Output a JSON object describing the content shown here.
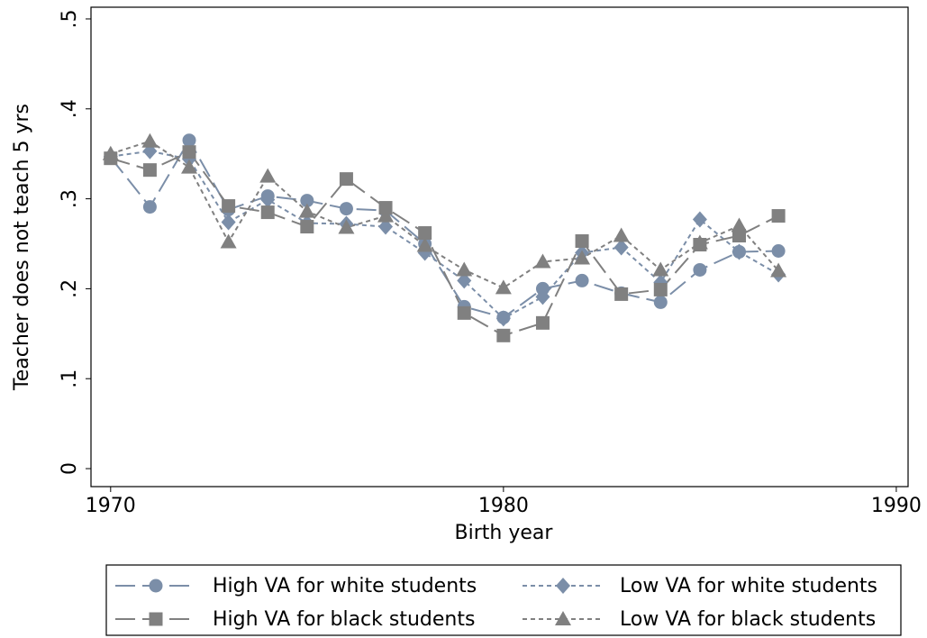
{
  "chart_data": {
    "type": "line",
    "x_label": "Birth year",
    "y_label": "Teacher does not teach 5 yrs",
    "x": [
      1970,
      1971,
      1972,
      1973,
      1974,
      1975,
      1976,
      1977,
      1978,
      1979,
      1980,
      1981,
      1982,
      1983,
      1984,
      1985,
      1986,
      1987
    ],
    "xlim": [
      1969.5,
      1990.3
    ],
    "xticks": [
      1970,
      1980,
      1990
    ],
    "ylim": [
      -0.02,
      0.513
    ],
    "yticks": [
      0,
      {
        "value": 0.1,
        "label": ".1"
      },
      {
        "value": 0.2,
        "label": ".2"
      },
      {
        "value": 0.3,
        "label": ".3"
      },
      {
        "value": 0.4,
        "label": ".4"
      },
      {
        "value": 0.5,
        "label": ".5"
      }
    ],
    "grid": false,
    "legend": "bottom",
    "series": [
      {
        "name": "High VA for white students",
        "color": "#7b8ea8",
        "marker": "circle",
        "dash": "long",
        "values": [
          0.346,
          0.291,
          0.365,
          0.288,
          0.303,
          0.298,
          0.289,
          0.287,
          0.25,
          0.18,
          0.168,
          0.2,
          0.209,
          0.195,
          0.185,
          0.221,
          0.241,
          0.242
        ]
      },
      {
        "name": "Low VA for white students",
        "color": "#7b8ea8",
        "marker": "diamond",
        "dash": "short",
        "values": [
          0.347,
          0.353,
          0.344,
          0.274,
          0.299,
          0.273,
          0.272,
          0.269,
          0.24,
          0.209,
          0.167,
          0.191,
          0.24,
          0.246,
          0.207,
          0.277,
          0.241,
          0.216
        ]
      },
      {
        "name": "High VA for black students",
        "color": "#808080",
        "marker": "square",
        "dash": "long",
        "values": [
          0.345,
          0.332,
          0.352,
          0.292,
          0.285,
          0.269,
          0.322,
          0.29,
          0.262,
          0.173,
          0.148,
          0.162,
          0.253,
          0.194,
          0.199,
          0.249,
          0.259,
          0.281
        ]
      },
      {
        "name": "Low VA for black students",
        "color": "#808080",
        "marker": "triangle",
        "dash": "short",
        "values": [
          0.35,
          0.364,
          0.335,
          0.252,
          0.325,
          0.286,
          0.268,
          0.281,
          0.248,
          0.221,
          0.201,
          0.23,
          0.234,
          0.259,
          0.221,
          0.251,
          0.27,
          0.22
        ]
      }
    ]
  }
}
